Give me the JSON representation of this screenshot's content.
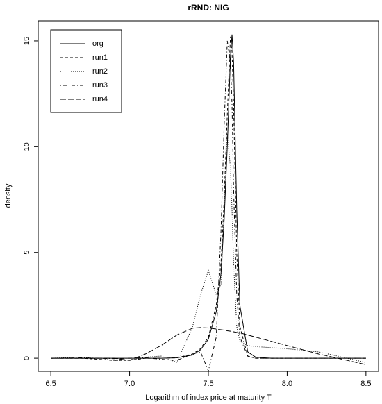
{
  "chart_data": {
    "type": "line",
    "title": "rRND: NIG",
    "x_label": "Logarithm of index price at maturity T",
    "y_label": "density",
    "x": [
      6.5,
      6.7,
      6.9,
      7.0,
      7.1,
      7.2,
      7.3,
      7.4,
      7.45,
      7.5,
      7.55,
      7.58,
      7.6,
      7.62,
      7.64,
      7.65,
      7.66,
      7.68,
      7.7,
      7.75,
      7.8,
      7.9,
      8.0,
      8.2,
      8.5
    ],
    "series": [
      {
        "name": "org",
        "color": "#000000",
        "dash": "solid",
        "values": [
          0,
          0,
          0,
          0,
          0,
          0,
          0.02,
          0.15,
          0.4,
          0.9,
          2.2,
          4,
          6.5,
          10,
          14.2,
          15.3,
          14,
          7,
          2.5,
          0.3,
          0.05,
          0,
          0,
          0,
          0
        ]
      },
      {
        "name": "run1",
        "color": "#000000",
        "dash": "dashed",
        "values": [
          0,
          0,
          -0.1,
          -0.1,
          0,
          0,
          0.02,
          0.2,
          0.45,
          1,
          2.5,
          4.5,
          7.5,
          11.5,
          15.2,
          14.5,
          12,
          5,
          1.5,
          0.1,
          0,
          0,
          0,
          0,
          0
        ]
      },
      {
        "name": "run2",
        "color": "#000000",
        "dash": "dotted",
        "values": [
          0,
          0.05,
          -0.1,
          -0.1,
          0.05,
          0.1,
          -0.2,
          1.5,
          3,
          4.15,
          3,
          3.5,
          7,
          10.6,
          9,
          7,
          4.5,
          1.5,
          0.8,
          0.6,
          0.55,
          0.5,
          0.45,
          0.3,
          -0.2
        ]
      },
      {
        "name": "run3",
        "color": "#000000",
        "dash": "dotdash",
        "values": [
          0,
          0.02,
          -0.02,
          0,
          0.03,
          -0.05,
          -0.1,
          0.2,
          0.3,
          -0.6,
          1,
          6,
          11,
          15,
          14,
          12,
          8,
          3,
          1,
          0.1,
          0,
          0,
          0,
          0,
          0
        ]
      },
      {
        "name": "run4",
        "color": "#000000",
        "dash": "longdash",
        "values": [
          0,
          0,
          0,
          -0.1,
          0.2,
          0.6,
          1.1,
          1.42,
          1.45,
          1.43,
          1.38,
          1.35,
          1.33,
          1.3,
          1.28,
          1.26,
          1.25,
          1.22,
          1.2,
          1.1,
          1.0,
          0.8,
          0.6,
          0.2,
          -0.3
        ]
      }
    ],
    "xlim": [
      6.42,
      8.58
    ],
    "ylim": [
      -0.62,
      15.95
    ],
    "xticks": [
      6.5,
      {
        "value": 7,
        "label": "7.0"
      },
      7.5,
      {
        "value": 8,
        "label": "8.0"
      },
      8.5
    ],
    "yticks": [
      0,
      5,
      10,
      15
    ],
    "legend": "top-left"
  }
}
